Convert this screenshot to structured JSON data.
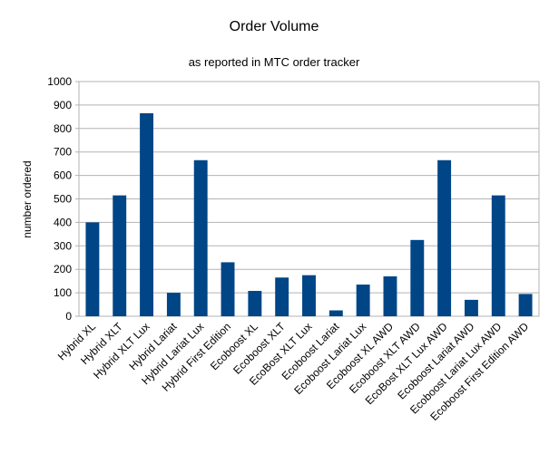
{
  "chart_data": {
    "type": "bar",
    "title": "Order Volume",
    "subtitle": "as reported in MTC order tracker",
    "y_label": "number ordered",
    "categories": [
      "Hybrid XL",
      "Hybrid XLT",
      "Hybrid XLT Lux",
      "Hybrid Lariat",
      "Hybrid Lariat Lux",
      "Hybrid First Edition",
      "Ecoboost XL",
      "Ecoboost XLT",
      "EcoBost XLT Lux",
      "Ecoboost Lariat",
      "Ecoboost Lariat Lux",
      "Ecoboost XL AWD",
      "Ecoboost XLT AWD",
      "EcoBost XLT Lux AWD",
      "Ecoboost Lariat AWD",
      "Ecoboost Lariat Lux AWD",
      "Ecoboost First Edition AWD"
    ],
    "values": [
      400,
      515,
      865,
      100,
      665,
      230,
      108,
      165,
      175,
      25,
      135,
      170,
      325,
      665,
      70,
      515,
      95
    ],
    "color": "#004586",
    "ylim": [
      0,
      1000
    ],
    "yticks": [
      0,
      100,
      200,
      300,
      400,
      500,
      600,
      700,
      800,
      900,
      1000
    ],
    "grid": true
  }
}
